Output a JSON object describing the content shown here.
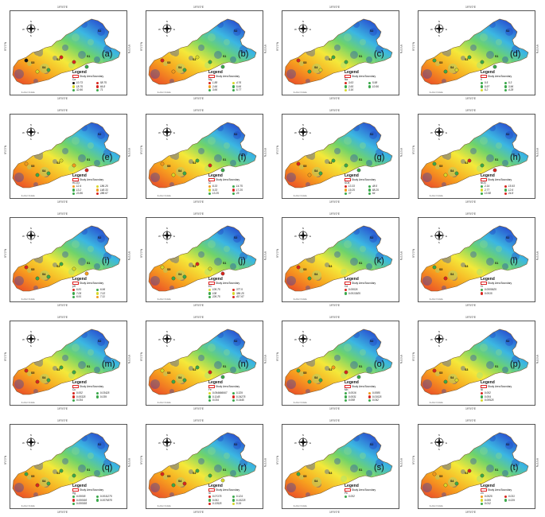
{
  "coordinates": {
    "top": "19°0'0\"E",
    "bottom": "19°0'0\"E",
    "left": "9°0'0\"N",
    "right": "9°0'0\"N"
  },
  "compass": {
    "n": "N",
    "s": "S",
    "e": "E",
    "w": "W"
  },
  "scale_text": "1 cm = 1 km",
  "legend_title": "Legend",
  "boundary_label": "Study Area Boundary",
  "sample_sites": [
    "S1",
    "S2",
    "S3",
    "S4",
    "S5"
  ],
  "colors": {
    "black": "#111111",
    "red": "#d7261e",
    "orange": "#f29a1d",
    "yellow": "#d8d82a",
    "green": "#3aa84a"
  },
  "panels": [
    {
      "label": "(a)",
      "param": "Ca",
      "items": [
        {
          "color": "black",
          "value": "10.73"
        },
        {
          "color": "yellow",
          "value": "18.75"
        },
        {
          "color": "green",
          "value": "32.66"
        },
        {
          "color": "red",
          "value": "58.75"
        },
        {
          "color": "red",
          "value": "66.8"
        },
        {
          "color": "green",
          "value": "71"
        }
      ]
    },
    {
      "label": "(b)",
      "param": "Mg",
      "items": [
        {
          "color": "red",
          "value": "1.88"
        },
        {
          "color": "orange",
          "value": "2.66"
        },
        {
          "color": "green",
          "value": "3.66"
        },
        {
          "color": "yellow",
          "value": "4.76"
        },
        {
          "color": "green",
          "value": "5.66"
        },
        {
          "color": "green",
          "value": "5.77"
        }
      ]
    },
    {
      "label": "(c)",
      "param": "Na",
      "items": [
        {
          "color": "red",
          "value": "3.63"
        },
        {
          "color": "green",
          "value": "2.65"
        },
        {
          "color": "yellow",
          "value": "3.16"
        },
        {
          "color": "green",
          "value": "5.98"
        },
        {
          "color": "green",
          "value": "10.56"
        }
      ]
    },
    {
      "label": "(d)",
      "param": "K",
      "items": [
        {
          "color": "green",
          "value": "0.5"
        },
        {
          "color": "green",
          "value": "0.97"
        },
        {
          "color": "yellow",
          "value": "5.2"
        },
        {
          "color": "green",
          "value": "5.3"
        },
        {
          "color": "green",
          "value": "3.96"
        },
        {
          "color": "green",
          "value": "4.28"
        }
      ]
    },
    {
      "label": "(e)",
      "param": "HCO3",
      "items": [
        {
          "color": "orange",
          "value": "12.4"
        },
        {
          "color": "green",
          "value": "13.2"
        },
        {
          "color": "green",
          "value": "23.86"
        },
        {
          "color": "yellow",
          "value": "186.25"
        },
        {
          "color": "orange",
          "value": "148.33"
        },
        {
          "color": "red",
          "value": "288.67"
        }
      ]
    },
    {
      "label": "(f)",
      "param": "Cl",
      "items": [
        {
          "color": "orange",
          "value": "8.33"
        },
        {
          "color": "yellow",
          "value": "9.33"
        },
        {
          "color": "green",
          "value": "13.25"
        },
        {
          "color": "green",
          "value": "14.75"
        },
        {
          "color": "red",
          "value": "17.25"
        },
        {
          "color": "green",
          "value": "25"
        }
      ]
    },
    {
      "label": "(g)",
      "param": "SO4",
      "items": [
        {
          "color": "red",
          "value": "13.33"
        },
        {
          "color": "orange",
          "value": "19.25"
        },
        {
          "color": "green",
          "value": "37"
        },
        {
          "color": "green",
          "value": "48.5"
        },
        {
          "color": "green",
          "value": "88.25"
        },
        {
          "color": "green",
          "value": "64"
        }
      ]
    },
    {
      "label": "(h)",
      "param": "NO3",
      "items": [
        {
          "color": "green",
          "value": "2.14"
        },
        {
          "color": "yellow",
          "value": "2.77"
        },
        {
          "color": "green",
          "value": "13.58"
        },
        {
          "color": "red",
          "value": "15.93"
        },
        {
          "color": "green",
          "value": "12.6"
        },
        {
          "color": "red",
          "value": "24.8"
        }
      ]
    },
    {
      "label": "(i)",
      "param": "pH",
      "items": [
        {
          "color": "red",
          "value": "6.81"
        },
        {
          "color": "green",
          "value": "7.05"
        },
        {
          "color": "green",
          "value": "6.91"
        },
        {
          "color": "green",
          "value": "6.96"
        },
        {
          "color": "yellow",
          "value": "7.02"
        },
        {
          "color": "orange",
          "value": "7.11"
        }
      ]
    },
    {
      "label": "(j)",
      "param": "EC",
      "items": [
        {
          "color": "yellow",
          "value": "105.75"
        },
        {
          "color": "green",
          "value": "108"
        },
        {
          "color": "green",
          "value": "226.75"
        },
        {
          "color": "red",
          "value": "377.5"
        },
        {
          "color": "yellow",
          "value": "386.25"
        },
        {
          "color": "red",
          "value": "417.67"
        }
      ]
    },
    {
      "label": "(k)",
      "param": "Cd",
      "items": [
        {
          "color": "red",
          "value": "0.00026"
        },
        {
          "color": "green",
          "value": "0.0013925"
        }
      ]
    },
    {
      "label": "(l)",
      "param": "Cr",
      "items": [
        {
          "color": "green",
          "value": "0.0005625"
        },
        {
          "color": "red",
          "value": "0.0015"
        }
      ]
    },
    {
      "label": "(m)",
      "param": "Cu",
      "items": [
        {
          "color": "red",
          "value": "0.002"
        },
        {
          "color": "red",
          "value": "0.00325"
        },
        {
          "color": "green",
          "value": "0.034"
        },
        {
          "color": "green",
          "value": "0.03425"
        },
        {
          "color": "green",
          "value": "0.039"
        }
      ]
    },
    {
      "label": "(n)",
      "param": "Fe",
      "items": [
        {
          "color": "yellow",
          "value": "0.094666667"
        },
        {
          "color": "green",
          "value": "0.1145"
        },
        {
          "color": "green",
          "value": "0.034"
        },
        {
          "color": "green",
          "value": "0.329"
        },
        {
          "color": "red",
          "value": "0.34275"
        },
        {
          "color": "green",
          "value": "0.1445"
        }
      ]
    },
    {
      "label": "(o)",
      "param": "Mn",
      "items": [
        {
          "color": "green",
          "value": "0.0016"
        },
        {
          "color": "green",
          "value": "0.0031"
        },
        {
          "color": "green",
          "value": "0.008"
        },
        {
          "color": "orange",
          "value": "0.0085"
        },
        {
          "color": "red",
          "value": "0.01025"
        },
        {
          "color": "green",
          "value": "0.042"
        }
      ]
    },
    {
      "label": "(p)",
      "param": "Ni",
      "items": [
        {
          "color": "red",
          "value": "0.002"
        },
        {
          "color": "green",
          "value": "0.004"
        },
        {
          "color": "yellow",
          "value": "0.00525"
        }
      ]
    },
    {
      "label": "(q)",
      "param": "Hg",
      "items": [
        {
          "color": "green",
          "value": "0.00005"
        },
        {
          "color": "red",
          "value": "0.000093"
        },
        {
          "color": "green",
          "value": "0.000093"
        },
        {
          "color": "green",
          "value": "0.0011275"
        },
        {
          "color": "green",
          "value": "0.0076575"
        }
      ]
    },
    {
      "label": "(r)",
      "param": "Sr",
      "items": [
        {
          "color": "red",
          "value": "0.07175"
        },
        {
          "color": "green",
          "value": "0.061"
        },
        {
          "color": "red",
          "value": "0.13525"
        },
        {
          "color": "green",
          "value": "0.124"
        },
        {
          "color": "green",
          "value": "0.15225"
        },
        {
          "color": "yellow",
          "value": "0.19"
        }
      ]
    },
    {
      "label": "(s)",
      "param": "Pb",
      "items": [
        {
          "color": "green",
          "value": "0.002"
        }
      ]
    },
    {
      "label": "(t)",
      "param": "Zn",
      "items": [
        {
          "color": "orange",
          "value": "0.0025"
        },
        {
          "color": "yellow",
          "value": "0.005"
        },
        {
          "color": "green",
          "value": "0.012"
        },
        {
          "color": "red",
          "value": "0.031"
        },
        {
          "color": "green",
          "value": "0.029"
        }
      ]
    }
  ]
}
